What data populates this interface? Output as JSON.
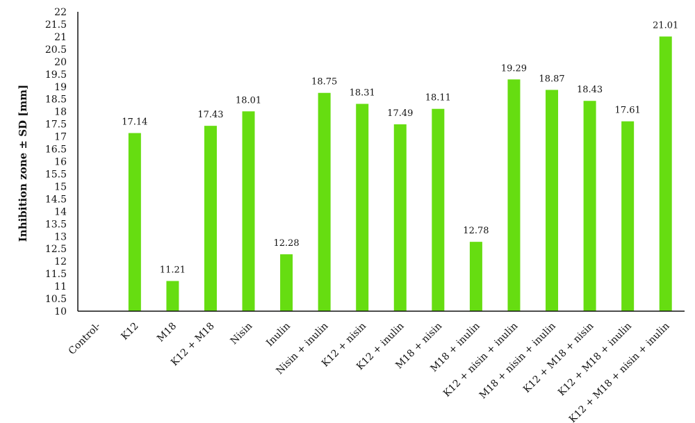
{
  "chart_data": {
    "type": "bar",
    "title": "",
    "xlabel": "",
    "ylabel": "Inhibition zone ± SD [mm]",
    "ylim": [
      10,
      22
    ],
    "ytick_step": 0.5,
    "yticks": [
      "10",
      "10.5",
      "11",
      "11.5",
      "12",
      "12.5",
      "13",
      "13.5",
      "14",
      "14.5",
      "15",
      "15.5",
      "16",
      "16.5",
      "17",
      "17.5",
      "18",
      "18.5",
      "19",
      "19.5",
      "20",
      "20.5",
      "21",
      "21.5",
      "22"
    ],
    "grid": false,
    "legend": "none",
    "bar_color": "#66dd11",
    "categories": [
      "Control-",
      "K12",
      "M18",
      "K12 + M18",
      "Nisin",
      "Inulin",
      "Nisin + inulin",
      "K12 + nisin",
      "K12 + inulin",
      "M18 + nisin",
      "M18 + inulin",
      "K12 + nisin + inulin",
      "M18 + nisin + inulin",
      "K12 + M18 + nisin",
      "K12 + M18 + inulin",
      "K12 + M18 + nisin + inulin"
    ],
    "values": [
      null,
      17.14,
      11.21,
      17.43,
      18.01,
      12.28,
      18.75,
      18.31,
      17.49,
      18.11,
      12.78,
      19.29,
      18.87,
      18.43,
      17.61,
      21.01
    ],
    "data_labels": [
      "",
      "17.14",
      "11.21",
      "17.43",
      "18.01",
      "12.28",
      "18.75",
      "18.31",
      "17.49",
      "18.11",
      "12.78",
      "19.29",
      "18.87",
      "18.43",
      "17.61",
      "21.01"
    ]
  }
}
